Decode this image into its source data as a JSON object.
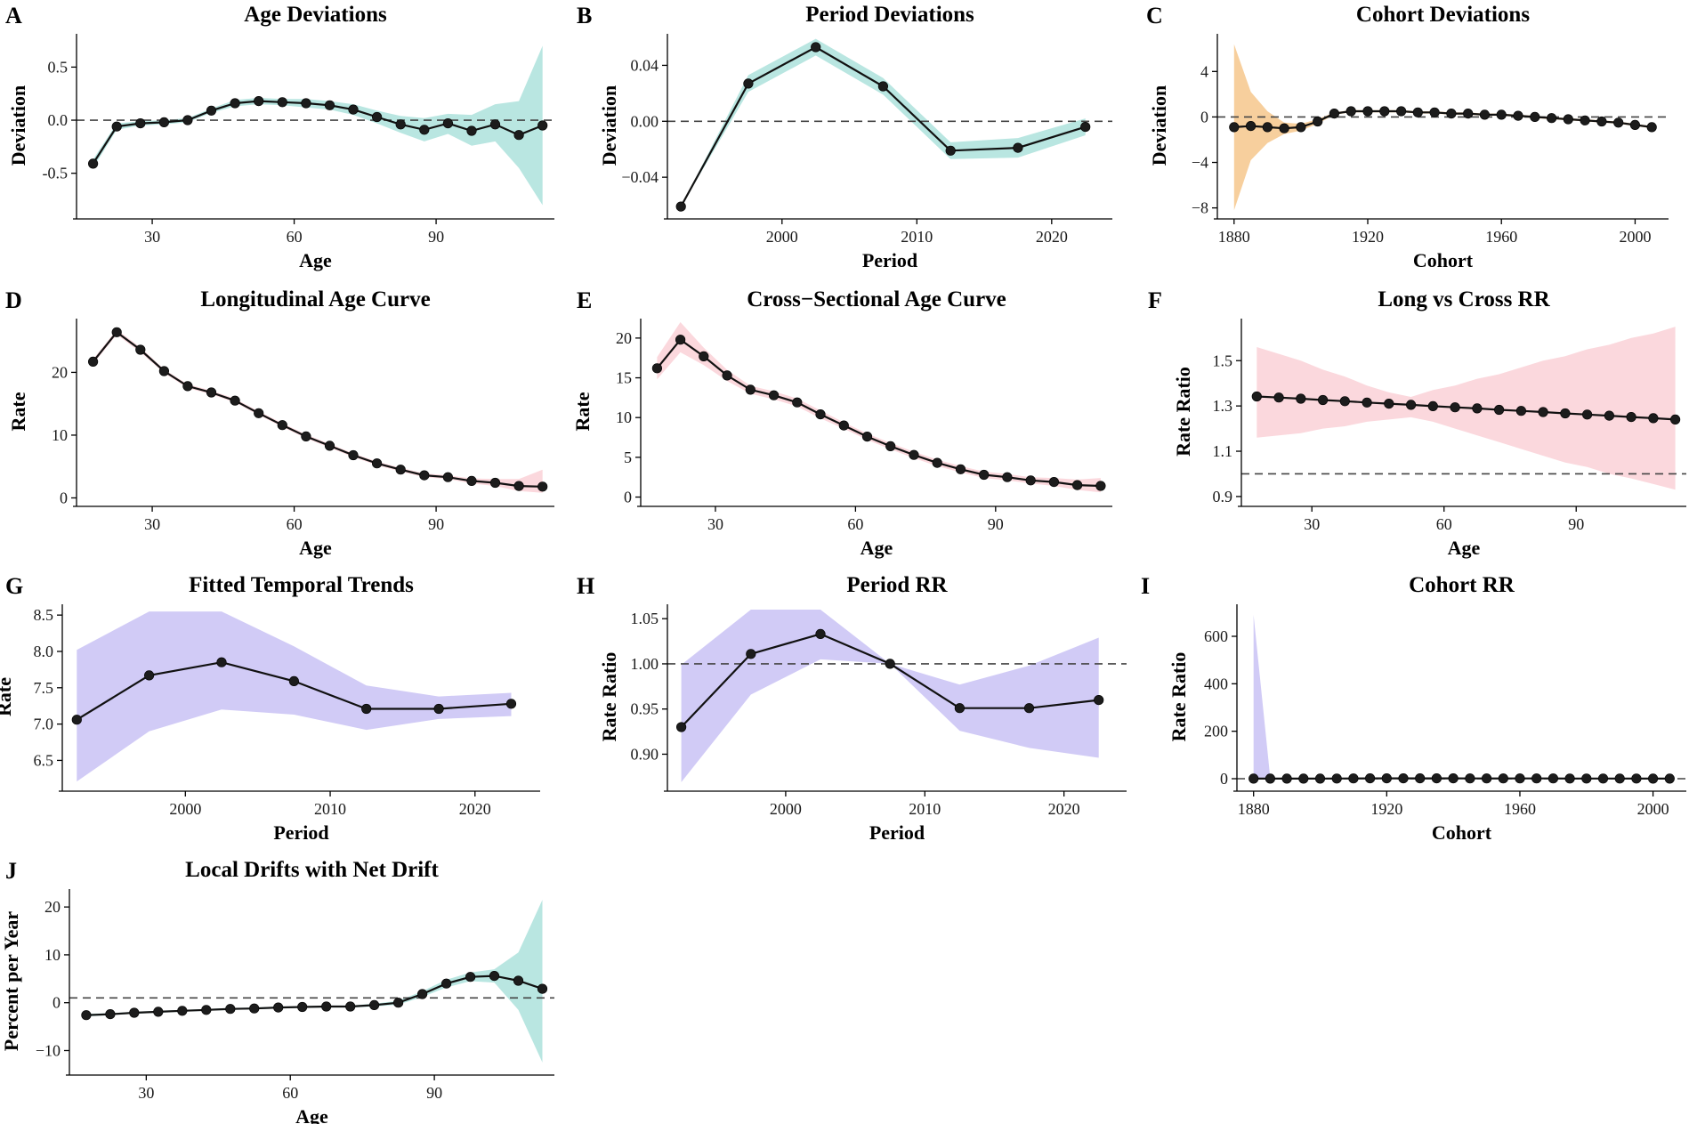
{
  "chart_data": [
    {
      "id": "A",
      "letter": "A",
      "type": "line",
      "title": "Age Deviations",
      "xlabel": "Age",
      "ylabel": "Deviation",
      "xlim": [
        14,
        115
      ],
      "ylim": [
        -0.88,
        0.78
      ],
      "xticks": [
        30,
        60,
        90
      ],
      "xtick_labels": [
        "30",
        "60",
        "90"
      ],
      "yticks": [
        -0.5,
        0.0,
        0.5
      ],
      "ytick_labels": [
        "-0.5",
        "0.0",
        "0.5"
      ],
      "ref_line": 0,
      "band_color": "#b9e6e1",
      "x": [
        17.5,
        22.5,
        27.5,
        32.5,
        37.5,
        42.5,
        47.5,
        52.5,
        57.5,
        62.5,
        67.5,
        72.5,
        77.5,
        82.5,
        87.5,
        92.5,
        97.5,
        102.5,
        107.5,
        112.5
      ],
      "y": [
        -0.41,
        -0.06,
        -0.03,
        -0.02,
        0.0,
        0.09,
        0.16,
        0.18,
        0.17,
        0.16,
        0.14,
        0.1,
        0.03,
        -0.04,
        -0.09,
        -0.03,
        -0.1,
        -0.04,
        -0.14,
        -0.05
      ],
      "lower": [
        -0.45,
        -0.09,
        -0.05,
        -0.04,
        -0.02,
        0.07,
        0.13,
        0.15,
        0.14,
        0.12,
        0.1,
        0.05,
        -0.03,
        -0.12,
        -0.2,
        -0.13,
        -0.24,
        -0.2,
        -0.45,
        -0.8
      ],
      "upper": [
        -0.37,
        -0.03,
        -0.01,
        0.0,
        0.02,
        0.11,
        0.19,
        0.21,
        0.2,
        0.2,
        0.18,
        0.15,
        0.09,
        0.04,
        0.02,
        0.06,
        0.05,
        0.15,
        0.18,
        0.7
      ]
    },
    {
      "id": "B",
      "letter": "B",
      "type": "line",
      "title": "Period Deviations",
      "xlabel": "Period",
      "ylabel": "Deviation",
      "xlim": [
        1991.5,
        2024.5
      ],
      "ylim": [
        -0.066,
        0.06
      ],
      "xticks": [
        2000,
        2010,
        2020
      ],
      "xtick_labels": [
        "2000",
        "2010",
        "2020"
      ],
      "yticks": [
        -0.04,
        0.0,
        0.04
      ],
      "ytick_labels": [
        "−0.04",
        "0.00",
        "0.04"
      ],
      "ref_line": 0,
      "band_color": "#b9e6e1",
      "x": [
        1992.5,
        1997.5,
        2002.5,
        2007.5,
        2012.5,
        2017.5,
        2022.5
      ],
      "y": [
        -0.061,
        0.027,
        0.053,
        0.025,
        -0.021,
        -0.019,
        -0.004
      ],
      "lower": [
        -0.061,
        0.021,
        0.047,
        0.019,
        -0.027,
        -0.026,
        -0.01
      ],
      "upper": [
        -0.061,
        0.033,
        0.059,
        0.031,
        -0.015,
        -0.012,
        0.002
      ]
    },
    {
      "id": "C",
      "letter": "C",
      "type": "line",
      "title": "Cohort Deviations",
      "xlabel": "Cohort",
      "ylabel": "Deviation",
      "xlim": [
        1875,
        2010
      ],
      "ylim": [
        -8.5,
        7.0
      ],
      "xticks": [
        1880,
        1920,
        1960,
        2000
      ],
      "xtick_labels": [
        "1880",
        "1920",
        "1960",
        "2000"
      ],
      "yticks": [
        -8,
        -4,
        0,
        4
      ],
      "ytick_labels": [
        "−8",
        "−4",
        "0",
        "4"
      ],
      "ref_line": 0,
      "band_color": "#f7cf9d",
      "x": [
        1880,
        1885,
        1890,
        1895,
        1900,
        1905,
        1910,
        1915,
        1920,
        1925,
        1930,
        1935,
        1940,
        1945,
        1950,
        1955,
        1960,
        1965,
        1970,
        1975,
        1980,
        1985,
        1990,
        1995,
        2000,
        2005
      ],
      "y": [
        -0.9,
        -0.8,
        -0.9,
        -1.0,
        -0.9,
        -0.4,
        0.3,
        0.5,
        0.5,
        0.5,
        0.5,
        0.4,
        0.4,
        0.3,
        0.3,
        0.2,
        0.2,
        0.1,
        0.0,
        -0.1,
        -0.2,
        -0.3,
        -0.4,
        -0.5,
        -0.7,
        -0.9
      ],
      "lower": [
        -8.2,
        -3.8,
        -2.3,
        -1.5,
        -1.2,
        -0.6,
        0.2,
        0.4,
        0.4,
        0.4,
        0.4,
        0.3,
        0.3,
        0.2,
        0.2,
        0.1,
        0.1,
        0.0,
        -0.1,
        -0.2,
        -0.3,
        -0.4,
        -0.5,
        -0.6,
        -0.8,
        -1.0
      ],
      "upper": [
        6.4,
        2.2,
        0.5,
        -0.5,
        -0.6,
        -0.2,
        0.4,
        0.6,
        0.6,
        0.6,
        0.6,
        0.5,
        0.5,
        0.4,
        0.4,
        0.3,
        0.3,
        0.2,
        0.1,
        0.0,
        -0.1,
        -0.2,
        -0.3,
        -0.4,
        -0.6,
        -0.8
      ]
    },
    {
      "id": "D",
      "letter": "D",
      "type": "line",
      "title": "Longitudinal Age Curve",
      "xlabel": "Age",
      "ylabel": "Rate",
      "xlim": [
        14,
        115
      ],
      "ylim": [
        -0.5,
        28
      ],
      "xticks": [
        30,
        60,
        90
      ],
      "xtick_labels": [
        "30",
        "60",
        "90"
      ],
      "yticks": [
        0,
        10,
        20
      ],
      "ytick_labels": [
        "0",
        "10",
        "20"
      ],
      "ref_line": null,
      "band_color": "#fbd8dd",
      "x": [
        17.5,
        22.5,
        27.5,
        32.5,
        37.5,
        42.5,
        47.5,
        52.5,
        57.5,
        62.5,
        67.5,
        72.5,
        77.5,
        82.5,
        87.5,
        92.5,
        97.5,
        102.5,
        107.5,
        112.5
      ],
      "y": [
        21.7,
        26.4,
        23.6,
        20.2,
        17.8,
        16.8,
        15.5,
        13.5,
        11.6,
        9.8,
        8.3,
        6.8,
        5.5,
        4.5,
        3.6,
        3.3,
        2.7,
        2.4,
        1.9,
        1.8
      ],
      "lower": [
        21.3,
        26.0,
        23.2,
        19.9,
        17.5,
        16.5,
        15.2,
        13.2,
        11.3,
        9.5,
        8.0,
        6.5,
        5.2,
        4.2,
        3.3,
        3.0,
        2.3,
        1.9,
        1.1,
        0.8
      ],
      "upper": [
        22.1,
        26.8,
        24.0,
        20.5,
        18.1,
        17.1,
        15.8,
        13.8,
        11.9,
        10.1,
        8.6,
        7.1,
        5.8,
        4.8,
        3.9,
        3.6,
        3.1,
        3.0,
        3.0,
        4.5
      ]
    },
    {
      "id": "E",
      "letter": "E",
      "type": "line",
      "title": "Cross−Sectional Age Curve",
      "xlabel": "Age",
      "ylabel": "Rate",
      "xlim": [
        14,
        115
      ],
      "ylim": [
        -0.5,
        22
      ],
      "xticks": [
        30,
        60,
        90
      ],
      "xtick_labels": [
        "30",
        "60",
        "90"
      ],
      "yticks": [
        0,
        5,
        10,
        15,
        20
      ],
      "ytick_labels": [
        "0",
        "5",
        "10",
        "15",
        "20"
      ],
      "ref_line": null,
      "band_color": "#fbd8dd",
      "x": [
        17.5,
        22.5,
        27.5,
        32.5,
        37.5,
        42.5,
        47.5,
        52.5,
        57.5,
        62.5,
        67.5,
        72.5,
        77.5,
        82.5,
        87.5,
        92.5,
        97.5,
        102.5,
        107.5,
        112.5
      ],
      "y": [
        16.2,
        19.8,
        17.7,
        15.3,
        13.5,
        12.8,
        11.9,
        10.4,
        9.0,
        7.6,
        6.4,
        5.3,
        4.3,
        3.5,
        2.8,
        2.5,
        2.1,
        1.9,
        1.5,
        1.4
      ],
      "lower": [
        14.8,
        18.2,
        16.6,
        14.6,
        13.0,
        12.3,
        11.4,
        9.9,
        8.6,
        7.2,
        6.0,
        4.9,
        3.9,
        3.1,
        2.4,
        2.1,
        1.7,
        1.4,
        0.9,
        0.6
      ],
      "upper": [
        17.6,
        22.0,
        18.8,
        16.0,
        14.0,
        13.3,
        12.4,
        10.9,
        9.4,
        8.0,
        6.8,
        5.7,
        4.7,
        3.9,
        3.2,
        2.9,
        2.5,
        2.4,
        2.2,
        2.4
      ]
    },
    {
      "id": "F",
      "letter": "F",
      "type": "line",
      "title": "Long vs Cross RR",
      "xlabel": "Age",
      "ylabel": "Rate Ratio",
      "xlim": [
        14,
        115
      ],
      "ylim": [
        0.88,
        1.67
      ],
      "xticks": [
        30,
        60,
        90
      ],
      "xtick_labels": [
        "30",
        "60",
        "90"
      ],
      "yticks": [
        0.9,
        1.1,
        1.3,
        1.5
      ],
      "ytick_labels": [
        "0.9",
        "1.1",
        "1.3",
        "1.5"
      ],
      "ref_line": 1,
      "band_color": "#fbd8dd",
      "x": [
        17.5,
        22.5,
        27.5,
        32.5,
        37.5,
        42.5,
        47.5,
        52.5,
        57.5,
        62.5,
        67.5,
        72.5,
        77.5,
        82.5,
        87.5,
        92.5,
        97.5,
        102.5,
        107.5,
        112.5
      ],
      "y": [
        1.342,
        1.337,
        1.332,
        1.326,
        1.321,
        1.315,
        1.31,
        1.305,
        1.299,
        1.294,
        1.289,
        1.283,
        1.278,
        1.273,
        1.267,
        1.262,
        1.257,
        1.251,
        1.246,
        1.24
      ],
      "lower": [
        1.16,
        1.17,
        1.18,
        1.2,
        1.21,
        1.23,
        1.24,
        1.25,
        1.23,
        1.2,
        1.17,
        1.14,
        1.11,
        1.08,
        1.05,
        1.03,
        1.0,
        0.98,
        0.955,
        0.93
      ],
      "upper": [
        1.56,
        1.53,
        1.5,
        1.46,
        1.43,
        1.39,
        1.36,
        1.34,
        1.37,
        1.39,
        1.42,
        1.44,
        1.47,
        1.5,
        1.52,
        1.55,
        1.57,
        1.6,
        1.62,
        1.65
      ]
    },
    {
      "id": "G",
      "letter": "G",
      "type": "line",
      "title": "Fitted Temporal Trends",
      "xlabel": "Period",
      "ylabel": "Rate",
      "xlim": [
        1991.5,
        2024.5
      ],
      "ylim": [
        6.15,
        8.6
      ],
      "xticks": [
        2000,
        2010,
        2020
      ],
      "xtick_labels": [
        "2000",
        "2010",
        "2020"
      ],
      "yticks": [
        6.5,
        7.0,
        7.5,
        8.0,
        8.5
      ],
      "ytick_labels": [
        "6.5",
        "7.0",
        "7.5",
        "8.0",
        "8.5"
      ],
      "ref_line": null,
      "band_color": "#d1cbf6",
      "x": [
        1992.5,
        1997.5,
        2002.5,
        2007.5,
        2012.5,
        2017.5,
        2022.5
      ],
      "y": [
        7.06,
        7.67,
        7.85,
        7.59,
        7.21,
        7.21,
        7.28
      ],
      "lower": [
        6.21,
        6.9,
        7.2,
        7.13,
        6.92,
        7.07,
        7.11
      ],
      "upper": [
        8.02,
        8.55,
        8.55,
        8.07,
        7.53,
        7.38,
        7.43
      ]
    },
    {
      "id": "H",
      "letter": "H",
      "type": "line",
      "title": "Period RR",
      "xlabel": "Period",
      "ylabel": "Rate Ratio",
      "xlim": [
        1991.5,
        2024.5
      ],
      "ylim": [
        0.865,
        1.062
      ],
      "xticks": [
        2000,
        2010,
        2020
      ],
      "xtick_labels": [
        "2000",
        "2010",
        "2020"
      ],
      "yticks": [
        0.9,
        0.95,
        1.0,
        1.05
      ],
      "ytick_labels": [
        "0.90",
        "0.95",
        "1.00",
        "1.05"
      ],
      "ref_line": 1,
      "band_color": "#d1cbf6",
      "x": [
        1992.5,
        1997.5,
        2002.5,
        2007.5,
        2012.5,
        2017.5,
        2022.5
      ],
      "y": [
        0.93,
        1.011,
        1.033,
        1.0,
        0.951,
        0.951,
        0.96
      ],
      "lower": [
        0.869,
        0.966,
        1.005,
        1.0,
        0.926,
        0.907,
        0.896
      ],
      "upper": [
        0.999,
        1.06,
        1.06,
        1.0,
        0.977,
        0.998,
        1.029
      ]
    },
    {
      "id": "I",
      "letter": "I",
      "type": "line",
      "title": "Cohort RR",
      "xlabel": "Cohort",
      "ylabel": "Rate Ratio",
      "xlim": [
        1875,
        2010
      ],
      "ylim": [
        -30,
        720
      ],
      "xticks": [
        1880,
        1920,
        1960,
        2000
      ],
      "xtick_labels": [
        "1880",
        "1920",
        "1960",
        "2000"
      ],
      "yticks": [
        0,
        200,
        400,
        600
      ],
      "ytick_labels": [
        "0",
        "200",
        "400",
        "600"
      ],
      "ref_line": 0,
      "band_color": "#d1cbf6",
      "x": [
        1880,
        1885,
        1890,
        1895,
        1900,
        1905,
        1910,
        1915,
        1920,
        1925,
        1930,
        1935,
        1940,
        1945,
        1950,
        1955,
        1960,
        1965,
        1970,
        1975,
        1980,
        1985,
        1990,
        1995,
        2000,
        2005
      ],
      "y": [
        0.4,
        0.4,
        0.4,
        0.4,
        0.4,
        0.7,
        1.3,
        1.6,
        1.6,
        1.6,
        1.6,
        1.5,
        1.4,
        1.3,
        1.3,
        1.2,
        1.2,
        1.1,
        1.0,
        0.9,
        0.8,
        0.7,
        0.7,
        0.6,
        0.5,
        0.4
      ],
      "lower": [
        0,
        0,
        0.1,
        0.2,
        0.3,
        0.6,
        1.2,
        1.5,
        1.5,
        1.5,
        1.5,
        1.4,
        1.3,
        1.2,
        1.2,
        1.1,
        1.1,
        1.0,
        0.9,
        0.8,
        0.7,
        0.6,
        0.6,
        0.5,
        0.4,
        0.3
      ],
      "upper": [
        690,
        4,
        1.6,
        0.6,
        0.5,
        0.8,
        1.4,
        1.7,
        1.7,
        1.7,
        1.7,
        1.6,
        1.5,
        1.4,
        1.4,
        1.3,
        1.3,
        1.2,
        1.1,
        1.0,
        0.9,
        0.8,
        0.8,
        0.7,
        0.6,
        0.5
      ]
    },
    {
      "id": "J",
      "letter": "J",
      "type": "line",
      "title": "Local Drifts with Net Drift",
      "xlabel": "Age",
      "ylabel": "Percent per Year",
      "xlim": [
        14,
        115
      ],
      "ylim": [
        -14,
        23
      ],
      "xticks": [
        30,
        60,
        90
      ],
      "xtick_labels": [
        "30",
        "60",
        "90"
      ],
      "yticks": [
        -10,
        0,
        10,
        20
      ],
      "ytick_labels": [
        "−10",
        "0",
        "10",
        "20"
      ],
      "ref_line": 1.0,
      "band_color": "#b9e6e1",
      "x": [
        17.5,
        22.5,
        27.5,
        32.5,
        37.5,
        42.5,
        47.5,
        52.5,
        57.5,
        62.5,
        67.5,
        72.5,
        77.5,
        82.5,
        87.5,
        92.5,
        97.5,
        102.5,
        107.5,
        112.5
      ],
      "y": [
        -2.6,
        -2.4,
        -2.1,
        -1.9,
        -1.7,
        -1.5,
        -1.3,
        -1.2,
        -1.0,
        -0.9,
        -0.8,
        -0.8,
        -0.5,
        0.0,
        1.8,
        4.0,
        5.4,
        5.6,
        4.6,
        2.9
      ],
      "lower": [
        -2.9,
        -2.6,
        -2.3,
        -2.1,
        -1.9,
        -1.7,
        -1.5,
        -1.4,
        -1.2,
        -1.1,
        -1.0,
        -1.0,
        -0.8,
        -0.4,
        1.2,
        3.2,
        4.5,
        4.2,
        -1.5,
        -12.5
      ],
      "upper": [
        -2.3,
        -2.2,
        -1.9,
        -1.7,
        -1.5,
        -1.3,
        -1.1,
        -1.0,
        -0.8,
        -0.7,
        -0.6,
        -0.6,
        -0.2,
        0.4,
        2.4,
        4.8,
        6.3,
        7.0,
        10.5,
        21.5
      ]
    }
  ]
}
